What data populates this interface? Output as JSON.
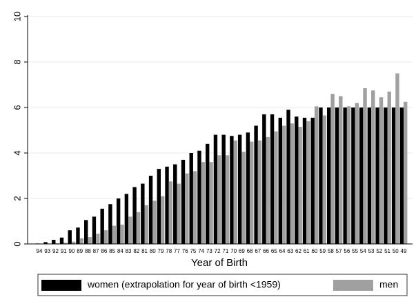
{
  "chart_data": {
    "type": "bar",
    "x_label": "Year of Birth",
    "categories": [
      "94",
      "93",
      "92",
      "91",
      "90",
      "89",
      "88",
      "87",
      "86",
      "85",
      "84",
      "83",
      "82",
      "81",
      "80",
      "79",
      "78",
      "77",
      "76",
      "75",
      "74",
      "73",
      "72",
      "71",
      "70",
      "69",
      "68",
      "67",
      "66",
      "65",
      "64",
      "63",
      "62",
      "61",
      "60",
      "59",
      "58",
      "57",
      "56",
      "55",
      "54",
      "53",
      "52",
      "51",
      "50",
      "49"
    ],
    "series": [
      {
        "name": "women (extrapolation for year of birth <1959)",
        "color": "#000000",
        "values": [
          0.02,
          0.08,
          0.18,
          0.28,
          0.6,
          0.72,
          1.05,
          1.2,
          1.55,
          1.75,
          2.0,
          2.2,
          2.5,
          2.65,
          3.0,
          3.3,
          3.4,
          3.5,
          3.7,
          4.0,
          4.1,
          4.4,
          4.8,
          4.8,
          4.75,
          4.8,
          4.9,
          5.2,
          5.7,
          5.7,
          5.55,
          5.9,
          5.6,
          5.55,
          5.55,
          6.0,
          6.0,
          6.0,
          6.0,
          6.0,
          6.0,
          6.0,
          6.0,
          6.0,
          6.0,
          6.0
        ]
      },
      {
        "name": "men",
        "color": "#a0a0a0",
        "values": [
          0,
          0.02,
          0.03,
          0.05,
          0.1,
          0.25,
          0.3,
          0.45,
          0.6,
          0.8,
          0.85,
          1.2,
          1.4,
          1.7,
          1.9,
          2.1,
          2.75,
          2.65,
          3.1,
          3.2,
          3.6,
          3.6,
          3.9,
          3.9,
          4.55,
          4.05,
          4.5,
          4.55,
          4.7,
          4.95,
          5.2,
          5.3,
          5.15,
          5.4,
          6.05,
          5.65,
          6.6,
          6.5,
          6.05,
          6.2,
          6.85,
          6.75,
          6.45,
          6.7,
          7.5,
          6.25
        ]
      }
    ],
    "ylim": [
      0,
      10
    ],
    "yticks": [
      0,
      2,
      4,
      6,
      8,
      10
    ],
    "grid": true,
    "legend": "bottom"
  }
}
